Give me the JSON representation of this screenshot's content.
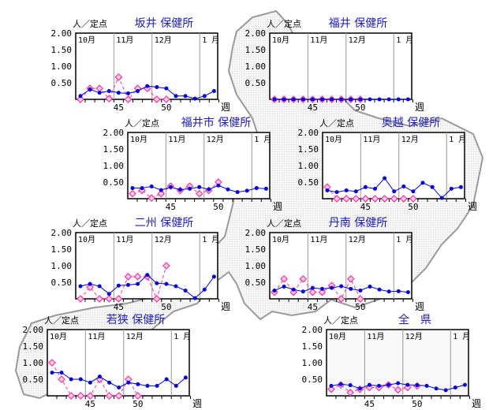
{
  "colors": {
    "current": "#0000ee",
    "previous": "#ff3399",
    "title": "#1a1acc",
    "map_fill": "#eeeeee",
    "map_edge": "#999999"
  },
  "common": {
    "unit_label": "人／定点",
    "x_unit": "週",
    "y_ticks": [
      "2.00",
      "1.50",
      "1.00",
      "0.50"
    ],
    "y_tick_values": [
      2.0,
      1.5,
      1.0,
      0.5
    ],
    "ylim": [
      0,
      2.0
    ],
    "x_weeks": [
      41,
      42,
      43,
      44,
      45,
      46,
      47,
      48,
      49,
      50,
      51,
      52,
      1,
      2,
      3
    ],
    "x_tick_labels": [
      {
        "label": "45",
        "week_index": 4
      },
      {
        "label": "50",
        "week_index": 9
      }
    ],
    "months": [
      {
        "label": "10月",
        "start_index": -0.5
      },
      {
        "label": "11月",
        "start_index": 3.5
      },
      {
        "label": "12月",
        "start_index": 7.5
      },
      {
        "label": "1 月",
        "start_index": 12.5
      }
    ]
  },
  "chart_data": [
    {
      "type": "line",
      "title": "坂井 保健所",
      "ylabel": "人／定点",
      "xlabel": "週",
      "ylim": [
        0,
        2
      ],
      "series": [
        {
          "name": "current",
          "values": [
            0.1,
            0.3,
            0.2,
            0.25,
            0.2,
            0.18,
            0.25,
            0.4,
            0.37,
            0.33,
            0.1,
            0.1,
            0.02,
            0.1,
            0.25
          ]
        },
        {
          "name": "previous",
          "values": [
            0.0,
            0.33,
            0.33,
            0.02,
            0.67,
            0.0,
            0.33,
            0.33,
            0.0,
            0.0
          ]
        }
      ]
    },
    {
      "type": "line",
      "title": "福井 保健所",
      "ylabel": "人／定点",
      "xlabel": "週",
      "ylim": [
        0,
        2
      ],
      "series": [
        {
          "name": "current",
          "values": [
            0,
            0,
            0,
            0,
            0,
            0,
            0,
            0,
            0,
            0,
            0,
            0,
            0,
            0,
            0
          ]
        },
        {
          "name": "previous",
          "values": [
            0,
            0,
            0,
            0,
            0,
            0,
            0,
            0,
            0,
            0
          ]
        }
      ]
    },
    {
      "type": "line",
      "title": "福井市 保健所",
      "ylabel": "人／定点",
      "xlabel": "週",
      "ylim": [
        0,
        2
      ],
      "series": [
        {
          "name": "current",
          "values": [
            0.32,
            0.32,
            0.37,
            0.26,
            0.35,
            0.27,
            0.3,
            0.35,
            0.28,
            0.4,
            0.28,
            0.2,
            0.24,
            0.32,
            0.3
          ]
        },
        {
          "name": "previous",
          "values": [
            0.15,
            0.25,
            0.02,
            0.15,
            0.38,
            0.25,
            0.38,
            0.15,
            0.25,
            0.5
          ]
        }
      ]
    },
    {
      "type": "line",
      "title": "奥越 保健所",
      "ylabel": "人／定点",
      "xlabel": "週",
      "ylim": [
        0,
        2
      ],
      "series": [
        {
          "name": "current",
          "values": [
            0.25,
            0.2,
            0.25,
            0.22,
            0.35,
            0.3,
            0.62,
            0.22,
            0.37,
            0.22,
            0.48,
            0.35,
            0.02,
            0.3,
            0.35
          ]
        },
        {
          "name": "previous",
          "values": [
            0.35,
            0,
            0,
            0,
            0,
            0,
            0,
            0,
            0,
            0
          ]
        }
      ]
    },
    {
      "type": "line",
      "title": "二州 保健所",
      "ylabel": "人／定点",
      "xlabel": "週",
      "ylim": [
        0,
        2
      ],
      "series": [
        {
          "name": "current",
          "values": [
            0.38,
            0.45,
            0.38,
            0.15,
            0.4,
            0.42,
            0.45,
            0.72,
            0.47,
            0.45,
            0.38,
            0.25,
            0.02,
            0.28,
            0.67
          ]
        },
        {
          "name": "previous",
          "values": [
            0.0,
            0.35,
            0.0,
            0.0,
            0.0,
            0.67,
            0.67,
            0.67,
            0.0,
            1.0
          ]
        }
      ]
    },
    {
      "type": "line",
      "title": "丹南 保健所",
      "ylabel": "人／定点",
      "xlabel": "週",
      "ylim": [
        0,
        2
      ],
      "series": [
        {
          "name": "current",
          "values": [
            0.25,
            0.37,
            0.28,
            0.22,
            0.33,
            0.3,
            0.33,
            0.38,
            0.3,
            0.25,
            0.37,
            0.28,
            0.22,
            0.23,
            0.2
          ]
        },
        {
          "name": "previous",
          "values": [
            0.2,
            0.6,
            0.2,
            0.6,
            0.2,
            0.2,
            0.4,
            0.0,
            0.6,
            0.0
          ]
        }
      ]
    },
    {
      "type": "line",
      "title": "若狭 保健所",
      "ylabel": "人／定点",
      "xlabel": "週",
      "ylim": [
        0,
        2
      ],
      "series": [
        {
          "name": "current",
          "values": [
            0.7,
            0.7,
            0.5,
            0.5,
            0.4,
            0.58,
            0.4,
            0.25,
            0.4,
            0.35,
            0.3,
            0.3,
            0.5,
            0.3,
            0.55
          ]
        },
        {
          "name": "previous",
          "values": [
            1.0,
            0.5,
            0.0,
            0.0,
            0.0,
            0.5,
            0.0,
            0.0,
            0.5,
            0.0
          ]
        }
      ]
    },
    {
      "type": "line",
      "title": "全　県",
      "ylabel": "人／定点",
      "xlabel": "週",
      "ylim": [
        0,
        2
      ],
      "series": [
        {
          "name": "current",
          "values": [
            0.3,
            0.35,
            0.32,
            0.22,
            0.33,
            0.3,
            0.33,
            0.38,
            0.33,
            0.32,
            0.3,
            0.22,
            0.17,
            0.25,
            0.33
          ]
        },
        {
          "name": "previous",
          "values": [
            0.2,
            0.33,
            0.1,
            0.2,
            0.25,
            0.25,
            0.33,
            0.18,
            0.25,
            0.3
          ]
        }
      ]
    }
  ]
}
